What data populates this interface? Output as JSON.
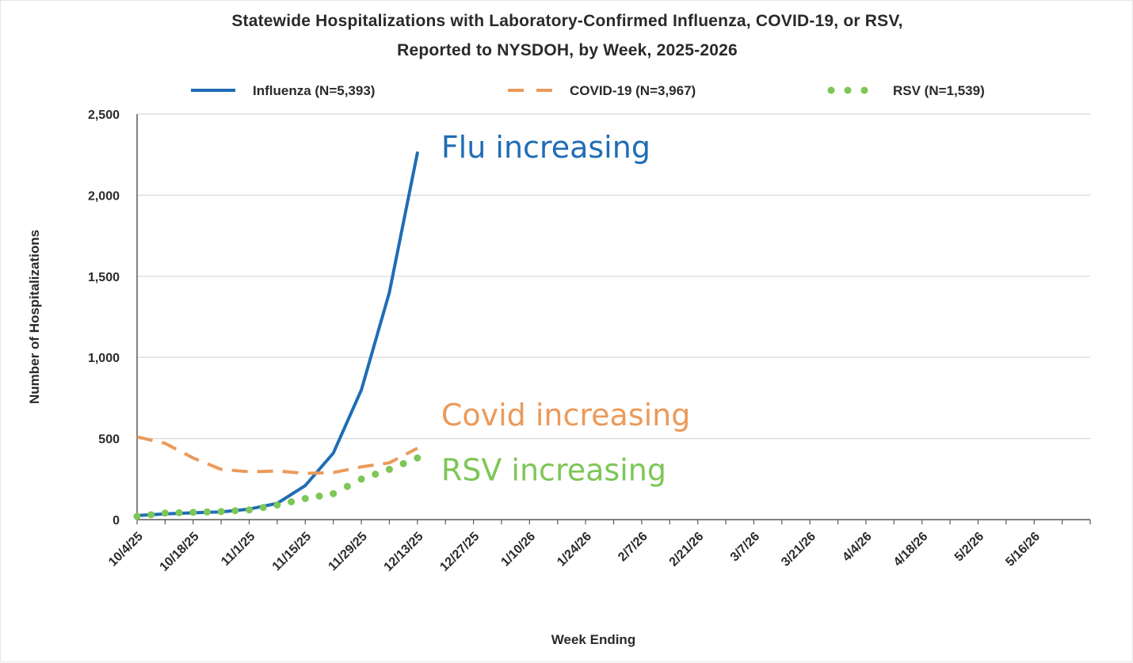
{
  "chart_data": {
    "type": "line",
    "title_line_1": "Statewide Hospitalizations with Laboratory-Confirmed  Influenza, COVID-19, or RSV,",
    "title_line_2": "Reported to NYSDOH, by Week, 2025-2026",
    "xlabel": "Week Ending",
    "ylabel": "Number of Hospitalizations",
    "ylim": [
      0,
      2500
    ],
    "y_ticks": [
      {
        "value": 0,
        "label": "0"
      },
      {
        "value": 500,
        "label": "500"
      },
      {
        "value": 1000,
        "label": "1,000"
      },
      {
        "value": 1500,
        "label": "1,500"
      },
      {
        "value": 2000,
        "label": "2,000"
      },
      {
        "value": 2500,
        "label": "2,500"
      }
    ],
    "x_tick_labels": [
      "10/4/25",
      "10/18/25",
      "11/1/25",
      "11/15/25",
      "11/29/25",
      "12/13/25",
      "12/27/25",
      "1/10/26",
      "1/24/26",
      "2/7/26",
      "2/21/26",
      "3/7/26",
      "3/21/26",
      "4/4/26",
      "4/18/26",
      "5/2/26",
      "5/16/26"
    ],
    "num_weeks": 34,
    "grid": true,
    "legend_position": "top",
    "series": [
      {
        "name": "Influenza (N=5,393)",
        "color": "#1f6db5",
        "style": "solid",
        "values": [
          25,
          35,
          42,
          48,
          65,
          100,
          210,
          410,
          800,
          1400,
          2260
        ]
      },
      {
        "name": "COVID-19 (N=3,967)",
        "color": "#eb9a5a",
        "style": "dashed",
        "values": [
          510,
          470,
          380,
          310,
          295,
          300,
          285,
          290,
          325,
          350,
          440
        ]
      },
      {
        "name": "RSV (N=1,539)",
        "color": "#7dc657",
        "style": "dotted",
        "values": [
          20,
          40,
          45,
          50,
          60,
          90,
          130,
          160,
          250,
          310,
          380
        ]
      }
    ],
    "annotations": [
      {
        "text": "Flu increasing",
        "color": "#1f6db5",
        "anchor_value": 2290
      },
      {
        "text": "Covid increasing",
        "color": "#eb9a5a",
        "anchor_value": 640
      },
      {
        "text": "RSV increasing",
        "color": "#7dc657",
        "anchor_value": 300
      }
    ]
  }
}
